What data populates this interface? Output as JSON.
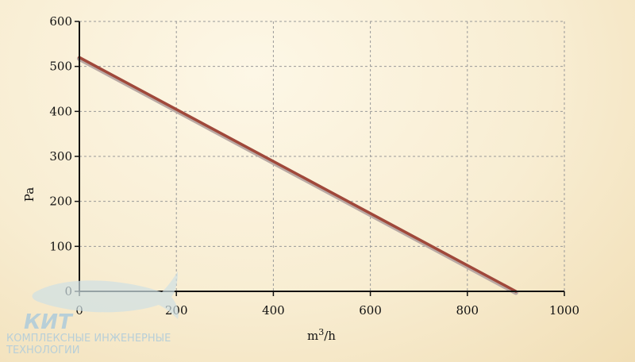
{
  "chart_data": {
    "type": "line",
    "title": "",
    "xlabel": "m³/h",
    "ylabel": "Pa",
    "xlim": [
      0,
      1000
    ],
    "ylim": [
      0,
      600
    ],
    "xticks": [
      0,
      200,
      400,
      600,
      800,
      1000
    ],
    "yticks": [
      0,
      100,
      200,
      300,
      400,
      500,
      600
    ],
    "grid": true,
    "series": [
      {
        "x": [
          0,
          900
        ],
        "y": [
          520,
          0
        ],
        "color": "#a0483a"
      }
    ]
  },
  "watermark": {
    "brand": "КИТ",
    "line1": "КОМПЛЕКСНЫЕ ИНЖЕНЕРНЫЕ",
    "line2": "ТЕХНОЛОГИИ"
  }
}
